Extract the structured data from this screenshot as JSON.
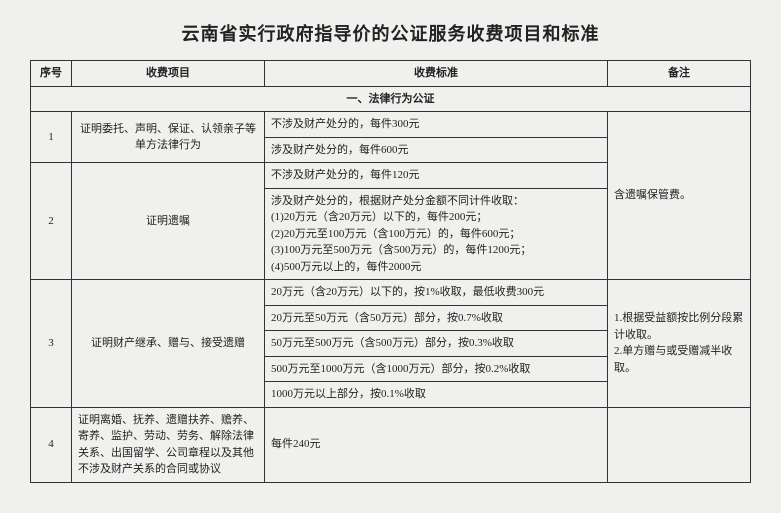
{
  "title": "云南省实行政府指导价的公证服务收费项目和标准",
  "headers": {
    "index": "序号",
    "item": "收费项目",
    "standard": "收费标准",
    "note": "备注"
  },
  "section1": {
    "heading": "一、法律行为公证"
  },
  "r1": {
    "idx": "1",
    "item": "证明委托、声明、保证、认领亲子等单方法律行为",
    "std1": "不涉及财产处分的，每件300元",
    "std2": "涉及财产处分的，每件600元"
  },
  "r2": {
    "idx": "2",
    "item": "证明遗嘱",
    "std1": "不涉及财产处分的，每件120元",
    "std2": "涉及财产处分的，根据财产处分金额不同计件收取：\n(1)20万元（含20万元）以下的，每件200元；\n(2)20万元至100万元（含100万元）的，每件600元；\n(3)100万元至500万元（含500万元）的，每件1200元；\n(4)500万元以上的，每件2000元",
    "note": "含遗嘱保管费。"
  },
  "r3": {
    "idx": "3",
    "item": "证明财产继承、赠与、接受遗赠",
    "std1": "20万元（含20万元）以下的，按1%收取，最低收费300元",
    "std2": "20万元至50万元（含50万元）部分，按0.7%收取",
    "std3": "50万元至500万元（含500万元）部分，按0.3%收取",
    "std4": "500万元至1000万元（含1000万元）部分，按0.2%收取",
    "std5": "1000万元以上部分，按0.1%收取",
    "note": "1.根据受益额按比例分段累计收取。\n2.单方赠与或受赠减半收取。"
  },
  "r4": {
    "idx": "4",
    "item": "证明离婚、抚养、遗赠扶养、赡养、寄养、监护、劳动、劳务、解除法律关系、出国留学、公司章程以及其他不涉及财产关系的合同或协议",
    "std": "每件240元"
  }
}
